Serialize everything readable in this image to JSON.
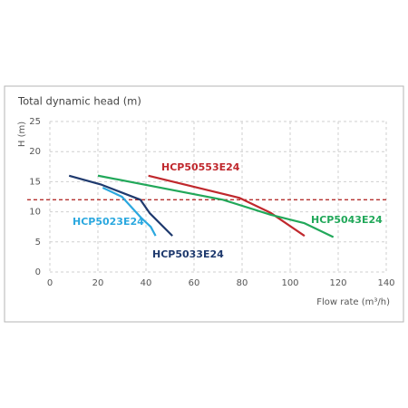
{
  "chart_data": {
    "type": "line",
    "title": "Total dynamic head (m)",
    "y_label": "H (m)",
    "x_label": "Flow rate (m³/h)",
    "xlim": [
      0,
      140
    ],
    "xticks": [
      0,
      20,
      40,
      60,
      80,
      100,
      120,
      140
    ],
    "ylim": [
      0,
      25
    ],
    "yticks": [
      0,
      5,
      10,
      15,
      20,
      25
    ],
    "grid": true,
    "reference_line": {
      "value": 12,
      "color": "#b5302e"
    },
    "series": [
      {
        "name": "HCP5023E24",
        "color": "#2ba8df",
        "x": [
          22,
          30,
          38,
          42,
          44
        ],
        "values": [
          14,
          12.5,
          9,
          7.5,
          6
        ]
      },
      {
        "name": "HCP5033E24",
        "color": "#1f3a6e",
        "x": [
          8,
          21.5,
          37.7,
          41.5,
          51
        ],
        "values": [
          16,
          14.5,
          12,
          9.8,
          6
        ]
      },
      {
        "name": "HCP50553E24",
        "color": "#c0282d",
        "x": [
          41,
          79,
          92,
          106
        ],
        "values": [
          16,
          12.3,
          9.8,
          6
        ]
      },
      {
        "name": "HCP5043E24",
        "color": "#22a85a",
        "x": [
          20,
          72,
          92,
          106,
          118
        ],
        "values": [
          16,
          12,
          9.5,
          8.1,
          5.8
        ]
      }
    ]
  }
}
